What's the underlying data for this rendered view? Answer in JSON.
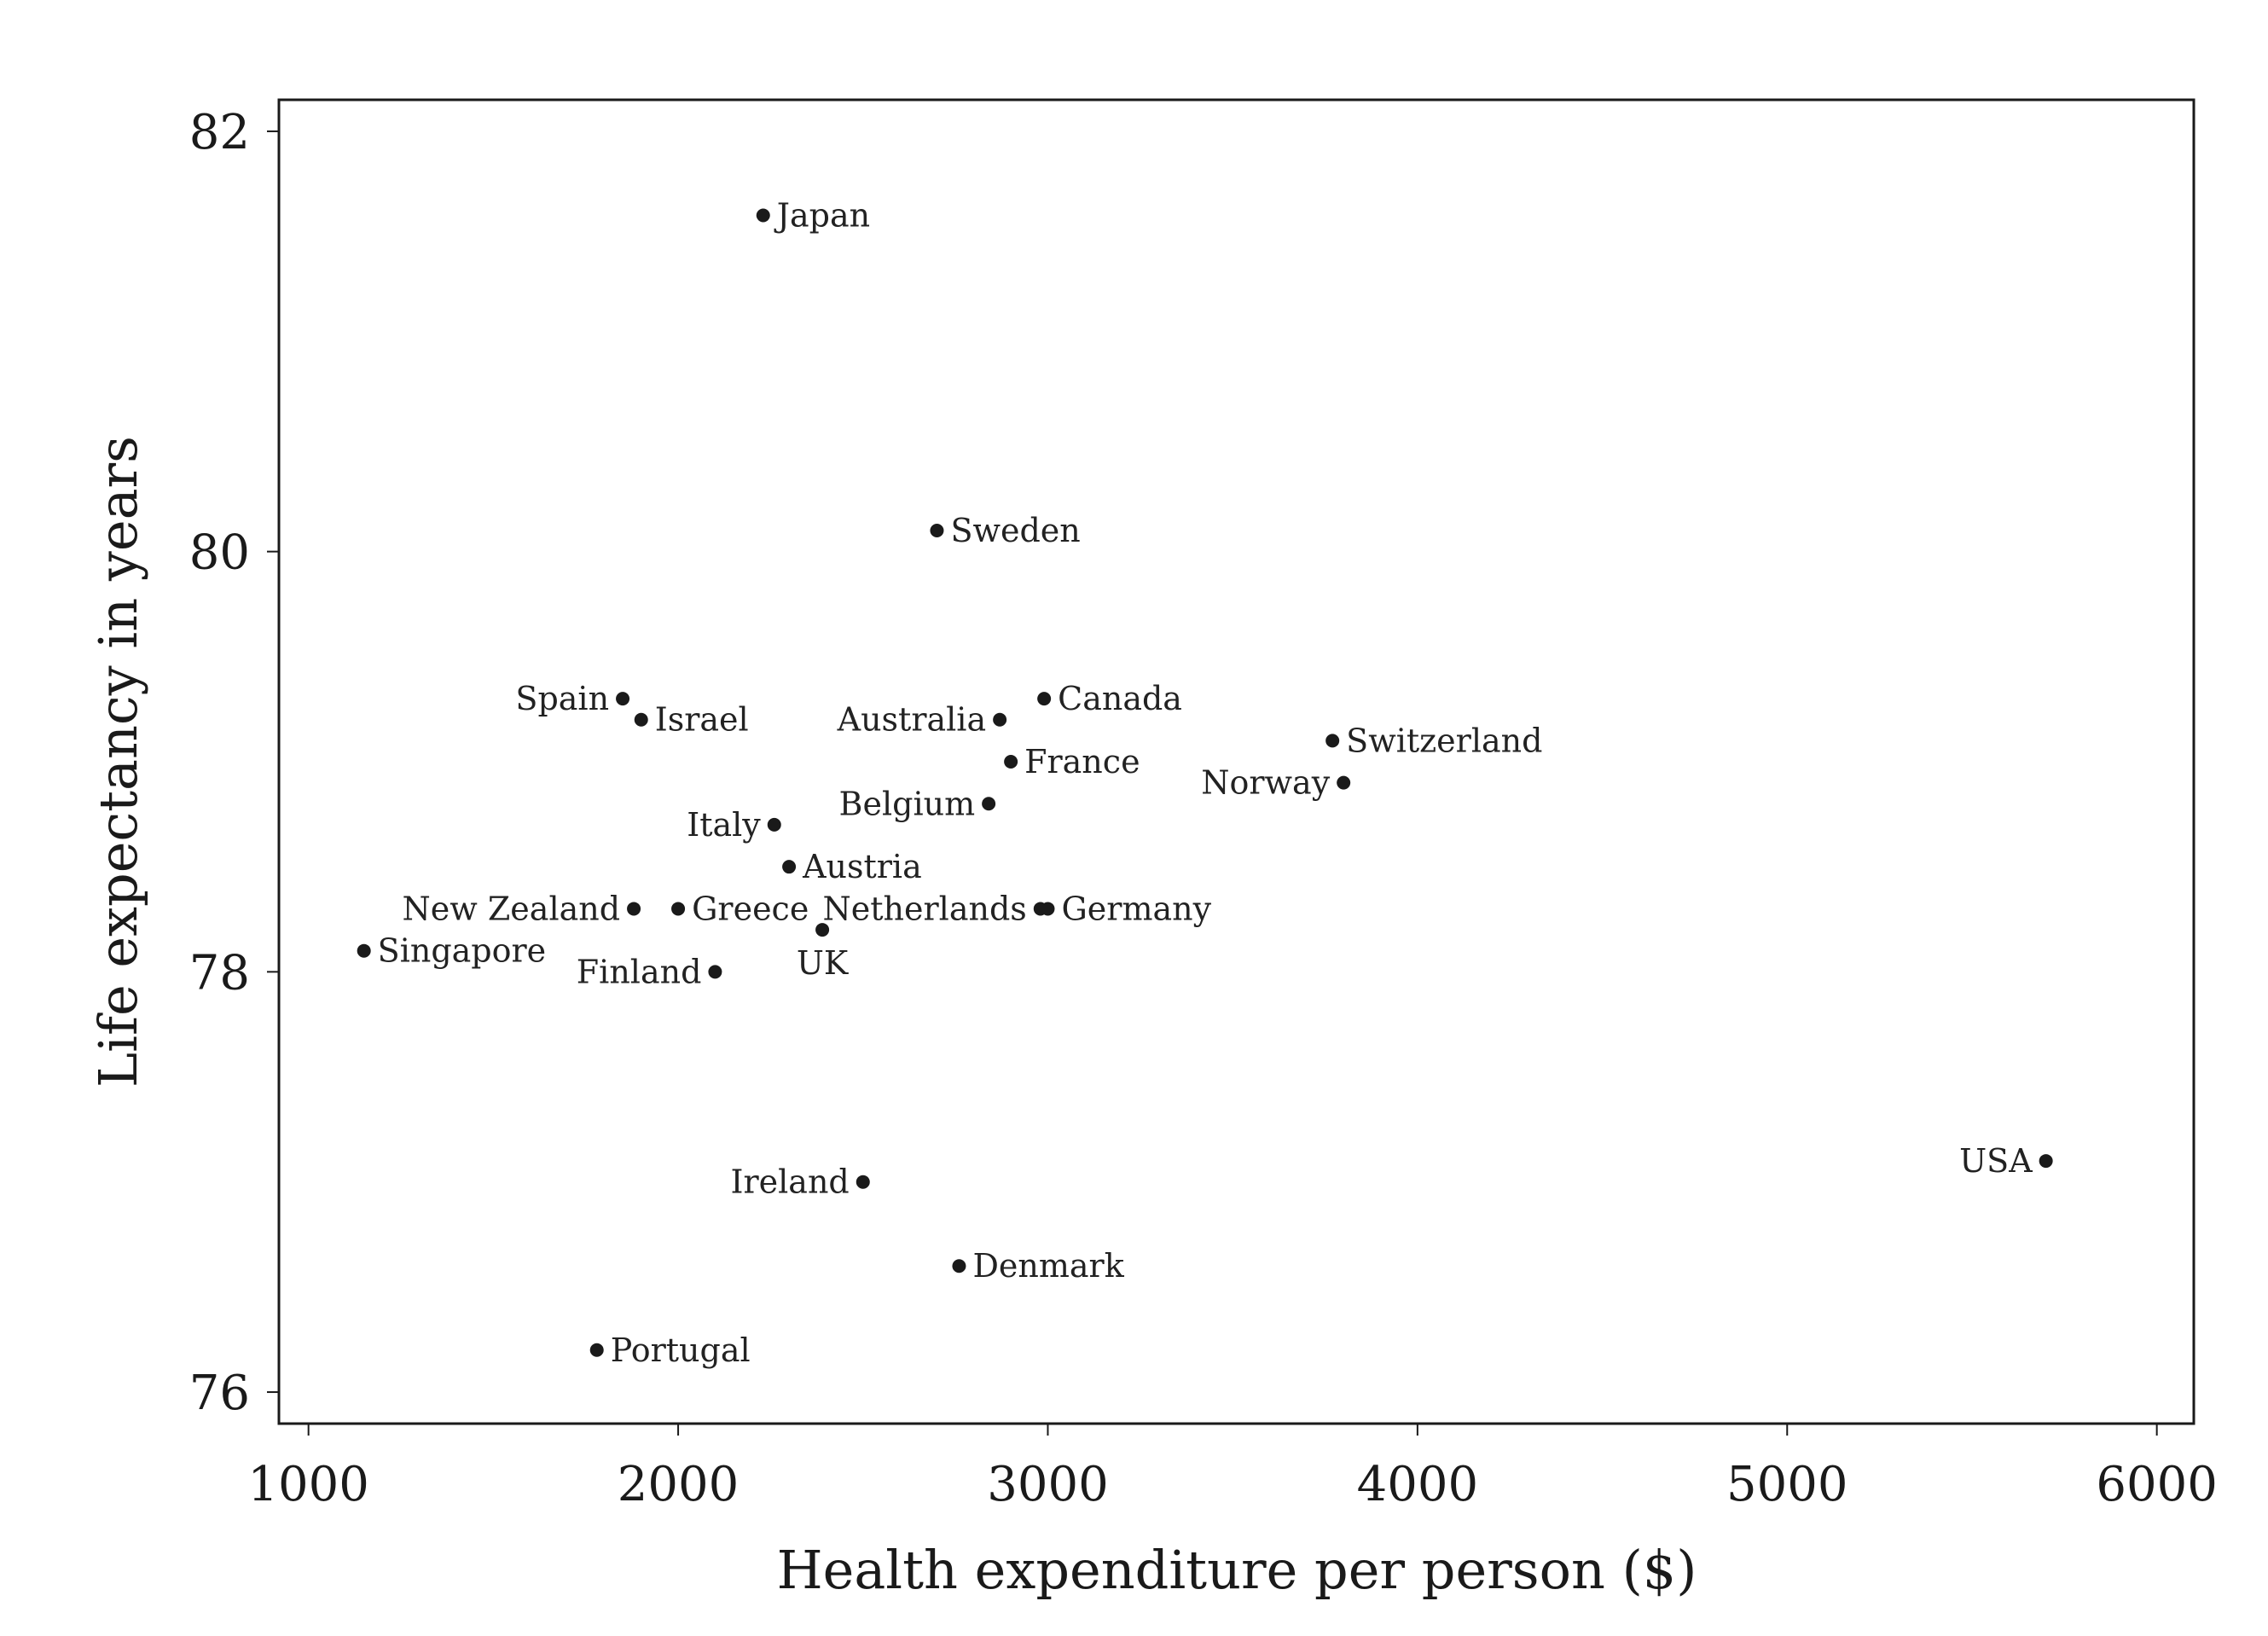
{
  "chart_data": {
    "type": "scatter",
    "xlabel": "Health expenditure per person ($)",
    "ylabel": "Life expectancy in years",
    "xlim": [
      920,
      6100
    ],
    "ylim": [
      75.85,
      82.15
    ],
    "xticks": [
      1000,
      2000,
      3000,
      4000,
      5000,
      6000
    ],
    "yticks": [
      76,
      78,
      80,
      82
    ],
    "grid": false,
    "points": [
      {
        "label": "Japan",
        "x": 2230,
        "y": 81.6,
        "pos": "right"
      },
      {
        "label": "Sweden",
        "x": 2700,
        "y": 80.1,
        "pos": "right"
      },
      {
        "label": "Spain",
        "x": 1850,
        "y": 79.3,
        "pos": "left"
      },
      {
        "label": "Israel",
        "x": 1900,
        "y": 79.2,
        "pos": "right"
      },
      {
        "label": "Canada",
        "x": 2990,
        "y": 79.3,
        "pos": "right"
      },
      {
        "label": "Australia",
        "x": 2870,
        "y": 79.2,
        "pos": "left"
      },
      {
        "label": "France",
        "x": 2900,
        "y": 79.0,
        "pos": "right"
      },
      {
        "label": "Switzerland",
        "x": 3770,
        "y": 79.1,
        "pos": "right"
      },
      {
        "label": "Norway",
        "x": 3800,
        "y": 78.9,
        "pos": "left"
      },
      {
        "label": "Belgium",
        "x": 2840,
        "y": 78.8,
        "pos": "left"
      },
      {
        "label": "Italy",
        "x": 2260,
        "y": 78.7,
        "pos": "left"
      },
      {
        "label": "Austria",
        "x": 2300,
        "y": 78.5,
        "pos": "right"
      },
      {
        "label": "New Zealand",
        "x": 1880,
        "y": 78.3,
        "pos": "left"
      },
      {
        "label": "Greece",
        "x": 2000,
        "y": 78.3,
        "pos": "right"
      },
      {
        "label": "Netherlands",
        "x": 2980,
        "y": 78.3,
        "pos": "left"
      },
      {
        "label": "Germany",
        "x": 3000,
        "y": 78.3,
        "pos": "right"
      },
      {
        "label": "UK",
        "x": 2390,
        "y": 78.2,
        "pos": "below"
      },
      {
        "label": "Singapore",
        "x": 1150,
        "y": 78.1,
        "pos": "right"
      },
      {
        "label": "Finland",
        "x": 2100,
        "y": 78.0,
        "pos": "left"
      },
      {
        "label": "USA",
        "x": 5700,
        "y": 77.1,
        "pos": "left"
      },
      {
        "label": "Ireland",
        "x": 2500,
        "y": 77.0,
        "pos": "left"
      },
      {
        "label": "Denmark",
        "x": 2760,
        "y": 76.6,
        "pos": "right"
      },
      {
        "label": "Portugal",
        "x": 1780,
        "y": 76.2,
        "pos": "right"
      }
    ]
  }
}
